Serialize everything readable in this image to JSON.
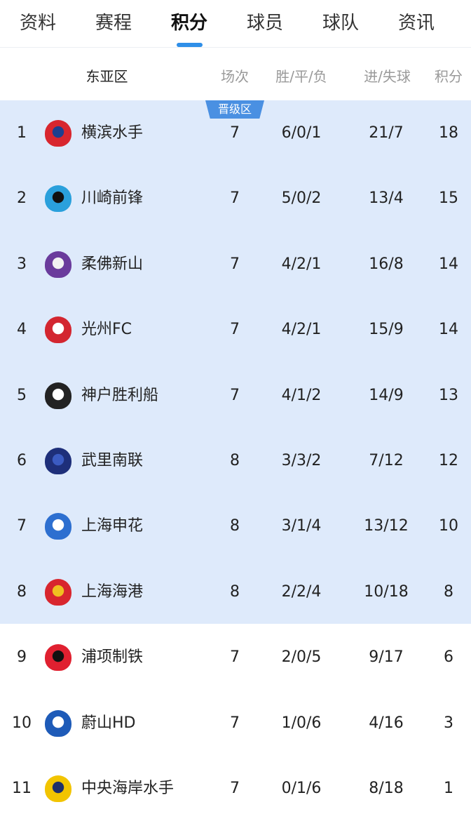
{
  "tabs": [
    "资料",
    "赛程",
    "积分",
    "球员",
    "球队",
    "资讯"
  ],
  "active_tab": 2,
  "header": {
    "group": "东亚区",
    "played": "场次",
    "wdl": "胜/平/负",
    "goals": "进/失球",
    "points": "积分"
  },
  "zone_badge": "晋级区",
  "colors": {
    "accent": "#2f8fe8",
    "zone_bg": "#deeafb",
    "badge": "#4a90e2"
  },
  "rows": [
    {
      "rank": "1",
      "team": "横滨水手",
      "played": "7",
      "wdl": "6/0/1",
      "goals": "21/7",
      "points": "18",
      "logo": "yokohama-crest",
      "c1": "#d8262e",
      "c2": "#1d3f8f"
    },
    {
      "rank": "2",
      "team": "川崎前锋",
      "played": "7",
      "wdl": "5/0/2",
      "goals": "13/4",
      "points": "15",
      "logo": "kawasaki-crest",
      "c1": "#2aa0dc",
      "c2": "#111111"
    },
    {
      "rank": "3",
      "team": "柔佛新山",
      "played": "7",
      "wdl": "4/2/1",
      "goals": "16/8",
      "points": "14",
      "logo": "johor-crest",
      "c1": "#6a3b9c",
      "c2": "#f2f2f2"
    },
    {
      "rank": "4",
      "team": "光州FC",
      "played": "7",
      "wdl": "4/2/1",
      "goals": "15/9",
      "points": "14",
      "logo": "gwangju-crest",
      "c1": "#d32630",
      "c2": "#ffffff"
    },
    {
      "rank": "5",
      "team": "神户胜利船",
      "played": "7",
      "wdl": "4/1/2",
      "goals": "14/9",
      "points": "13",
      "logo": "kobe-crest",
      "c1": "#222222",
      "c2": "#ffffff"
    },
    {
      "rank": "6",
      "team": "武里南联",
      "played": "8",
      "wdl": "3/3/2",
      "goals": "7/12",
      "points": "12",
      "logo": "buriram-crest",
      "c1": "#1e2f7a",
      "c2": "#3b5bc2"
    },
    {
      "rank": "7",
      "team": "上海申花",
      "played": "8",
      "wdl": "3/1/4",
      "goals": "13/12",
      "points": "10",
      "logo": "shenhua-crest",
      "c1": "#2d6fd0",
      "c2": "#ffffff"
    },
    {
      "rank": "8",
      "team": "上海海港",
      "played": "8",
      "wdl": "2/2/4",
      "goals": "10/18",
      "points": "8",
      "logo": "port-crest",
      "c1": "#d8262e",
      "c2": "#f0c020"
    },
    {
      "rank": "9",
      "team": "浦项制铁",
      "played": "7",
      "wdl": "2/0/5",
      "goals": "9/17",
      "points": "6",
      "logo": "pohang-crest",
      "c1": "#e02030",
      "c2": "#111111"
    },
    {
      "rank": "10",
      "team": "蔚山HD",
      "played": "7",
      "wdl": "1/0/6",
      "goals": "4/16",
      "points": "3",
      "logo": "ulsan-crest",
      "c1": "#1e5bb8",
      "c2": "#ffffff"
    },
    {
      "rank": "11",
      "team": "中央海岸水手",
      "played": "7",
      "wdl": "0/1/6",
      "goals": "8/18",
      "points": "1",
      "logo": "central-coast-crest",
      "c1": "#f2c400",
      "c2": "#1e2f6a"
    }
  ]
}
